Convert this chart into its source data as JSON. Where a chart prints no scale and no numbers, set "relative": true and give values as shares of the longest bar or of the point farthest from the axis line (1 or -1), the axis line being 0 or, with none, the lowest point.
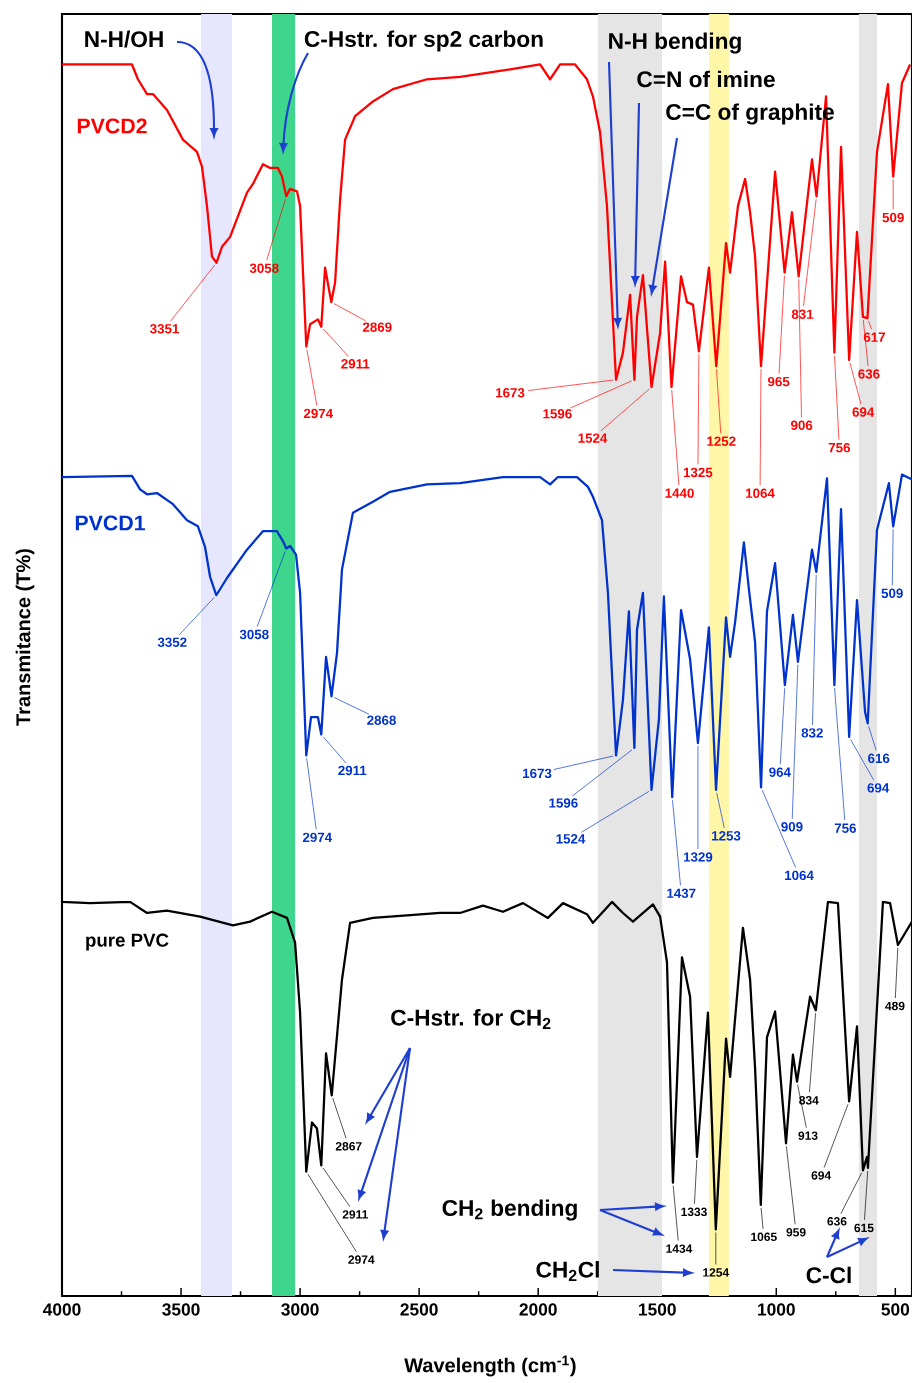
{
  "chart_data": {
    "type": "line",
    "relative": true,
    "xlabel": "Wavelength (cm$^{-1}$)",
    "ylabel": "Transmitance (T%)",
    "xlim": [
      4000,
      430
    ],
    "xticks": [
      4000,
      3500,
      3000,
      2500,
      2000,
      1500,
      1000,
      500
    ],
    "bands": [
      {
        "axis": "x",
        "from": 3416,
        "to": 3286,
        "color": "#e6e6ff"
      },
      {
        "axis": "x",
        "from": 3118,
        "to": 3021,
        "color": "#3dd68c"
      },
      {
        "axis": "x",
        "from": 1749,
        "to": 1480,
        "color": "#e5e5e5"
      },
      {
        "axis": "x",
        "from": 1283,
        "to": 1199,
        "color": "#fff6a8"
      },
      {
        "axis": "x",
        "from": 653,
        "to": 577,
        "color": "#e5e5e5"
      }
    ],
    "series": [
      {
        "name": "PVCD2",
        "color": "#ff0000",
        "x": [
          4000,
          3706,
          3681,
          3643,
          3618,
          3559,
          3492,
          3433,
          3412,
          3391,
          3370,
          3351,
          3328,
          3294,
          3223,
          3198,
          3156,
          3126,
          3093,
          3076,
          3058,
          3042,
          3013,
          3000,
          2974,
          2958,
          2925,
          2911,
          2895,
          2869,
          2853,
          2832,
          2811,
          2769,
          2694,
          2610,
          2467,
          2328,
          2118,
          1992,
          1950,
          1908,
          1845,
          1795,
          1770,
          1740,
          1711,
          1673,
          1644,
          1614,
          1596,
          1585,
          1560,
          1524,
          1488,
          1467,
          1440,
          1400,
          1375,
          1350,
          1325,
          1283,
          1252,
          1211,
          1194,
          1161,
          1131,
          1110,
          1089,
          1064,
          1005,
          965,
          934,
          906,
          850,
          831,
          791,
          756,
          728,
          694,
          661,
          636,
          617,
          577,
          531,
          509,
          472,
          438
        ],
        "values": [
          1,
          1,
          0.988,
          0.976,
          0.976,
          0.963,
          0.939,
          0.929,
          0.917,
          0.885,
          0.844,
          0.839,
          0.852,
          0.86,
          0.896,
          0.903,
          0.919,
          0.916,
          0.916,
          0.909,
          0.893,
          0.899,
          0.897,
          0.885,
          0.771,
          0.789,
          0.793,
          0.787,
          0.835,
          0.807,
          0.823,
          0.89,
          0.939,
          0.958,
          0.97,
          0.98,
          0.988,
          0.99,
          0.996,
          1,
          0.988,
          1,
          1,
          0.988,
          0.974,
          0.945,
          0.885,
          0.744,
          0.766,
          0.813,
          0.744,
          0.795,
          0.829,
          0.738,
          0.782,
          0.84,
          0.738,
          0.828,
          0.807,
          0.805,
          0.767,
          0.835,
          0.755,
          0.855,
          0.831,
          0.885,
          0.907,
          0.88,
          0.844,
          0.755,
          0.913,
          0.831,
          0.88,
          0.828,
          0.923,
          0.893,
          0.974,
          0.766,
          0.933,
          0.76,
          0.864,
          0.795,
          0.794,
          0.929,
          0.984,
          0.909,
          0.985,
          1
        ]
      },
      {
        "name": "PVCD1",
        "color": "#0033cc",
        "x": [
          4000,
          3706,
          3672,
          3643,
          3601,
          3534,
          3475,
          3429,
          3399,
          3378,
          3352,
          3307,
          3223,
          3156,
          3097,
          3072,
          3058,
          3042,
          3017,
          3000,
          2974,
          2954,
          2925,
          2911,
          2891,
          2868,
          2845,
          2824,
          2778,
          2694,
          2622,
          2467,
          2328,
          2148,
          1992,
          1950,
          1917,
          1837,
          1791,
          1770,
          1732,
          1707,
          1673,
          1644,
          1619,
          1596,
          1585,
          1560,
          1524,
          1493,
          1472,
          1437,
          1400,
          1362,
          1329,
          1283,
          1253,
          1211,
          1194,
          1173,
          1136,
          1115,
          1089,
          1064,
          1039,
          1005,
          964,
          930,
          909,
          850,
          832,
          787,
          756,
          728,
          694,
          661,
          627,
          616,
          577,
          527,
          509,
          472,
          430
        ],
        "values": [
          0.665,
          0.666,
          0.655,
          0.651,
          0.652,
          0.643,
          0.63,
          0.625,
          0.608,
          0.584,
          0.569,
          0.583,
          0.606,
          0.621,
          0.621,
          0.613,
          0.607,
          0.609,
          0.602,
          0.571,
          0.439,
          0.47,
          0.47,
          0.456,
          0.519,
          0.487,
          0.522,
          0.59,
          0.636,
          0.645,
          0.653,
          0.659,
          0.66,
          0.665,
          0.665,
          0.659,
          0.665,
          0.665,
          0.657,
          0.649,
          0.63,
          0.571,
          0.439,
          0.484,
          0.556,
          0.445,
          0.541,
          0.571,
          0.411,
          0.468,
          0.568,
          0.405,
          0.557,
          0.517,
          0.449,
          0.543,
          0.411,
          0.551,
          0.519,
          0.547,
          0.612,
          0.574,
          0.531,
          0.413,
          0.556,
          0.595,
          0.496,
          0.553,
          0.515,
          0.606,
          0.588,
          0.664,
          0.496,
          0.639,
          0.454,
          0.565,
          0.474,
          0.465,
          0.622,
          0.66,
          0.625,
          0.667,
          0.663
        ]
      },
      {
        "name": "pure PVC",
        "color": "#000000",
        "x": [
          4000,
          3882,
          3714,
          3643,
          3559,
          3420,
          3282,
          3210,
          3118,
          3055,
          3021,
          3000,
          2974,
          2950,
          2929,
          2911,
          2891,
          2867,
          2824,
          2790,
          2694,
          2551,
          2412,
          2328,
          2232,
          2148,
          2064,
          1959,
          1896,
          1795,
          1770,
          1690,
          1644,
          1602,
          1518,
          1488,
          1459,
          1434,
          1396,
          1362,
          1333,
          1287,
          1254,
          1211,
          1194,
          1140,
          1110,
          1089,
          1065,
          1039,
          1005,
          959,
          930,
          913,
          858,
          834,
          783,
          741,
          694,
          661,
          636,
          619,
          615,
          552,
          522,
          489,
          430
        ],
        "values": [
          0.32,
          0.319,
          0.32,
          0.311,
          0.313,
          0.308,
          0.301,
          0.304,
          0.312,
          0.307,
          0.287,
          0.23,
          0.101,
          0.141,
          0.136,
          0.106,
          0.197,
          0.163,
          0.257,
          0.303,
          0.307,
          0.309,
          0.311,
          0.311,
          0.317,
          0.312,
          0.319,
          0.307,
          0.319,
          0.31,
          0.303,
          0.32,
          0.311,
          0.304,
          0.318,
          0.308,
          0.271,
          0.092,
          0.275,
          0.243,
          0.113,
          0.23,
          0.054,
          0.209,
          0.178,
          0.299,
          0.257,
          0.185,
          0.074,
          0.21,
          0.231,
          0.124,
          0.196,
          0.174,
          0.243,
          0.232,
          0.32,
          0.319,
          0.158,
          0.219,
          0.102,
          0.113,
          0.104,
          0.32,
          0.319,
          0.285,
          0.304
        ]
      }
    ],
    "annotations": [
      "N-H/OH",
      "C-Hstr. for sp2 carbon",
      "N-H bending",
      "C=N of imine",
      "C=C of graphite",
      "C-Hstr. for CH$_{2}$",
      "CH$_{2}$ bending",
      "CH$_{2}$Cl",
      "C-Cl",
      {
        "text": "3351",
        "x": 3351,
        "y": 0.839
      },
      {
        "text": "3058",
        "x": 3058,
        "y": 0.893
      },
      {
        "text": "2974",
        "x": 2974,
        "y": 0.771
      },
      {
        "text": "2911",
        "x": 2911,
        "y": 0.787
      },
      {
        "text": "2869",
        "x": 2869,
        "y": 0.807
      },
      {
        "text": "1673",
        "x": 1673,
        "y": 0.744
      },
      {
        "text": "1596",
        "x": 1596,
        "y": 0.744
      },
      {
        "text": "1524",
        "x": 1524,
        "y": 0.738
      },
      {
        "text": "1440",
        "x": 1440,
        "y": 0.738
      },
      {
        "text": "1325",
        "x": 1325,
        "y": 0.767
      },
      {
        "text": "1252",
        "x": 1252,
        "y": 0.755
      },
      {
        "text": "1064",
        "x": 1064,
        "y": 0.755
      },
      {
        "text": "965",
        "x": 965,
        "y": 0.831
      },
      {
        "text": "906",
        "x": 906,
        "y": 0.828
      },
      {
        "text": "831",
        "x": 831,
        "y": 0.893
      },
      {
        "text": "756",
        "x": 756,
        "y": 0.766
      },
      {
        "text": "694",
        "x": 694,
        "y": 0.76
      },
      {
        "text": "636",
        "x": 636,
        "y": 0.795
      },
      {
        "text": "617",
        "x": 617,
        "y": 0.794
      },
      {
        "text": "509",
        "x": 509,
        "y": 0.909
      },
      {
        "text": "3352",
        "x": 3352,
        "y": 0.569
      },
      {
        "text": "3058",
        "x": 3058,
        "y": 0.607
      },
      {
        "text": "2974",
        "x": 2974,
        "y": 0.439
      },
      {
        "text": "2911",
        "x": 2911,
        "y": 0.456
      },
      {
        "text": "2868",
        "x": 2868,
        "y": 0.487
      },
      {
        "text": "1673",
        "x": 1673,
        "y": 0.439
      },
      {
        "text": "1596",
        "x": 1596,
        "y": 0.445
      },
      {
        "text": "1524",
        "x": 1524,
        "y": 0.411
      },
      {
        "text": "1437",
        "x": 1437,
        "y": 0.405
      },
      {
        "text": "1329",
        "x": 1329,
        "y": 0.449
      },
      {
        "text": "1253",
        "x": 1253,
        "y": 0.411
      },
      {
        "text": "1064",
        "x": 1064,
        "y": 0.413
      },
      {
        "text": "964",
        "x": 964,
        "y": 0.496
      },
      {
        "text": "909",
        "x": 909,
        "y": 0.515
      },
      {
        "text": "832",
        "x": 832,
        "y": 0.588
      },
      {
        "text": "756",
        "x": 756,
        "y": 0.496
      },
      {
        "text": "694",
        "x": 694,
        "y": 0.454
      },
      {
        "text": "616",
        "x": 616,
        "y": 0.465
      },
      {
        "text": "509",
        "x": 509,
        "y": 0.625
      },
      {
        "text": "2974",
        "x": 2974,
        "y": 0.101
      },
      {
        "text": "2911",
        "x": 2911,
        "y": 0.106
      },
      {
        "text": "2867",
        "x": 2867,
        "y": 0.163
      },
      {
        "text": "1434",
        "x": 1434,
        "y": 0.092
      },
      {
        "text": "1333",
        "x": 1333,
        "y": 0.113
      },
      {
        "text": "1254",
        "x": 1254,
        "y": 0.054
      },
      {
        "text": "1065",
        "x": 1065,
        "y": 0.074
      },
      {
        "text": "959",
        "x": 959,
        "y": 0.124
      },
      {
        "text": "913",
        "x": 913,
        "y": 0.174
      },
      {
        "text": "834",
        "x": 834,
        "y": 0.232
      },
      {
        "text": "694",
        "x": 694,
        "y": 0.158
      },
      {
        "text": "636",
        "x": 636,
        "y": 0.102
      },
      {
        "text": "615",
        "x": 615,
        "y": 0.104
      },
      {
        "text": "489",
        "x": 489,
        "y": 0.285
      }
    ]
  }
}
